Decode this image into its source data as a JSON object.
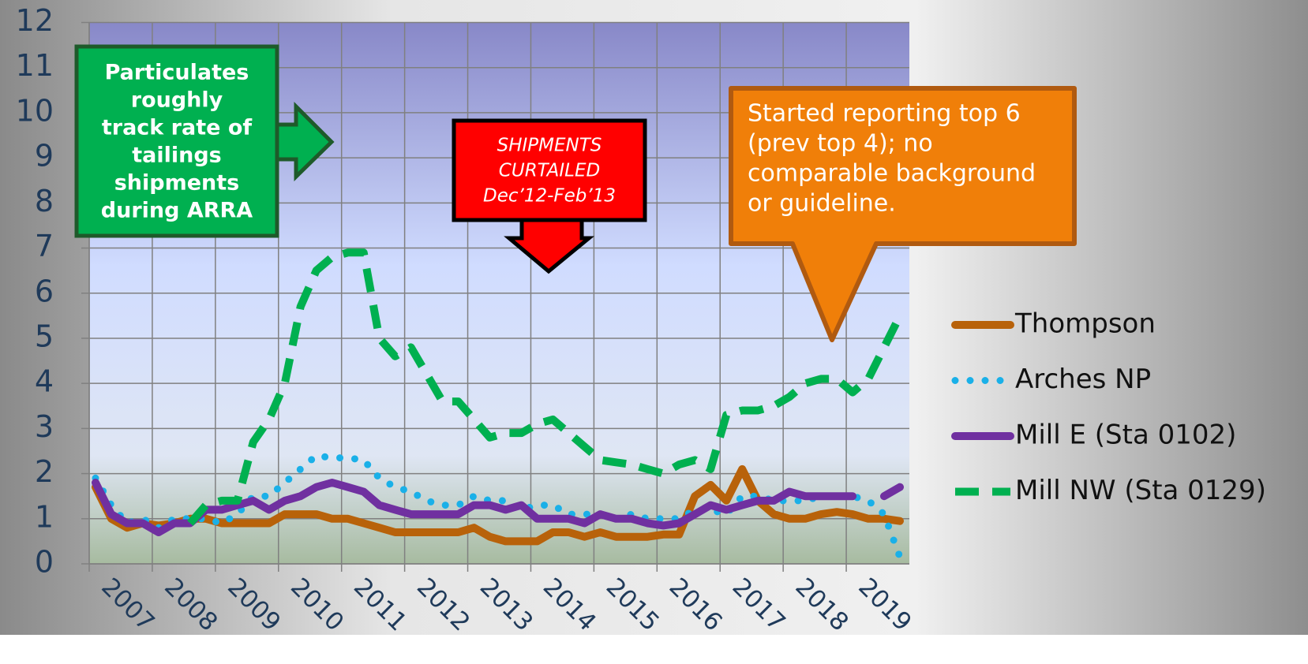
{
  "chart_data": {
    "type": "line",
    "x": [
      2007.1,
      2007.35,
      2007.6,
      2007.85,
      2008.1,
      2008.35,
      2008.6,
      2008.85,
      2009.1,
      2009.35,
      2009.6,
      2009.85,
      2010.1,
      2010.35,
      2010.6,
      2010.85,
      2011.1,
      2011.35,
      2011.6,
      2011.85,
      2012.1,
      2012.35,
      2012.6,
      2012.85,
      2013.1,
      2013.35,
      2013.6,
      2013.85,
      2014.1,
      2014.35,
      2014.6,
      2014.85,
      2015.1,
      2015.35,
      2015.6,
      2015.85,
      2016.1,
      2016.35,
      2016.6,
      2016.85,
      2017.1,
      2017.35,
      2017.6,
      2017.85,
      2018.1,
      2018.35,
      2018.6,
      2018.85,
      2019.1,
      2019.35,
      2019.6,
      2019.85
    ],
    "xlim": [
      2007,
      2020
    ],
    "xticks": [
      2007,
      2008,
      2009,
      2010,
      2011,
      2012,
      2013,
      2014,
      2015,
      2016,
      2017,
      2018,
      2019
    ],
    "ylim": [
      0,
      12
    ],
    "yticks": [
      0,
      1,
      2,
      3,
      4,
      5,
      6,
      7,
      8,
      9,
      10,
      11,
      12
    ],
    "grid": true,
    "series": [
      {
        "name": "Thompson",
        "color": "#b8620a",
        "style": "solid",
        "values": [
          1.7,
          1.0,
          0.8,
          0.9,
          0.85,
          0.9,
          1.0,
          1.0,
          0.9,
          0.9,
          0.9,
          0.9,
          1.1,
          1.1,
          1.1,
          1.0,
          1.0,
          0.9,
          0.8,
          0.7,
          0.7,
          0.7,
          0.7,
          0.7,
          0.8,
          0.6,
          0.5,
          0.5,
          0.5,
          0.7,
          0.7,
          0.6,
          0.7,
          0.6,
          0.6,
          0.6,
          0.65,
          0.65,
          1.5,
          1.75,
          1.4,
          2.1,
          1.4,
          1.1,
          1.0,
          1.0,
          1.1,
          1.15,
          1.1,
          1.0,
          1.0,
          0.95
        ]
      },
      {
        "name": "Arches NP",
        "color": "#1ab0e8",
        "style": "dotted",
        "values": [
          1.9,
          1.3,
          0.9,
          1.0,
          0.8,
          1.0,
          1.0,
          1.0,
          0.9,
          1.1,
          1.5,
          1.5,
          1.8,
          2.1,
          2.4,
          2.35,
          2.35,
          2.3,
          1.9,
          1.7,
          1.6,
          1.4,
          1.3,
          1.3,
          1.5,
          1.4,
          1.4,
          1.2,
          1.3,
          1.3,
          1.1,
          1.1,
          1.1,
          1.0,
          1.1,
          1.0,
          1.0,
          1.0,
          1.2,
          1.2,
          1.1,
          1.5,
          1.5,
          1.4,
          1.4,
          1.4,
          1.5,
          1.5,
          1.5,
          1.4,
          1.1,
          0.15
        ]
      },
      {
        "name": "Mill E (Sta 0102)",
        "color": "#7030a0",
        "style": "solid",
        "values": [
          1.8,
          1.1,
          0.9,
          0.9,
          0.7,
          0.9,
          0.9,
          1.2,
          1.2,
          1.3,
          1.4,
          1.2,
          1.4,
          1.5,
          1.7,
          1.8,
          1.7,
          1.6,
          1.3,
          1.2,
          1.1,
          1.1,
          1.1,
          1.1,
          1.3,
          1.3,
          1.2,
          1.3,
          1.0,
          1.0,
          1.0,
          0.9,
          1.1,
          1.0,
          1.0,
          0.9,
          0.85,
          0.9,
          1.1,
          1.3,
          1.2,
          1.3,
          1.4,
          1.4,
          1.6,
          1.5,
          1.5,
          1.5,
          1.5,
          null,
          1.5,
          1.7
        ]
      },
      {
        "name": "Mill NW (Sta 0129)",
        "color": "#00b050",
        "style": "dashed",
        "values": [
          null,
          null,
          null,
          null,
          null,
          null,
          0.9,
          1.3,
          1.4,
          1.4,
          2.7,
          3.2,
          4.0,
          5.7,
          6.5,
          6.8,
          6.9,
          6.9,
          5.0,
          4.6,
          4.8,
          4.2,
          3.6,
          3.6,
          3.2,
          2.8,
          2.9,
          2.9,
          3.1,
          3.2,
          2.9,
          2.6,
          2.3,
          2.25,
          2.2,
          2.1,
          2.0,
          2.2,
          2.3,
          2.1,
          3.3,
          3.4,
          3.4,
          3.5,
          3.7,
          4.0,
          4.1,
          4.1,
          3.8,
          4.1,
          4.8,
          5.5
        ]
      }
    ],
    "annotations": [
      {
        "lines": [
          "Particulates",
          "roughly",
          "track rate of",
          "tailings",
          "shipments",
          "during ARRA"
        ],
        "color": "#00b050"
      },
      {
        "lines": [
          "SHIPMENTS",
          "CURTAILED",
          "Dec’12-Feb’13"
        ],
        "color": "#ff0000"
      },
      {
        "lines": [
          "Started reporting top 6",
          "(prev top 4); no",
          "comparable background",
          "or guideline."
        ],
        "color": "#f07f09"
      }
    ]
  }
}
